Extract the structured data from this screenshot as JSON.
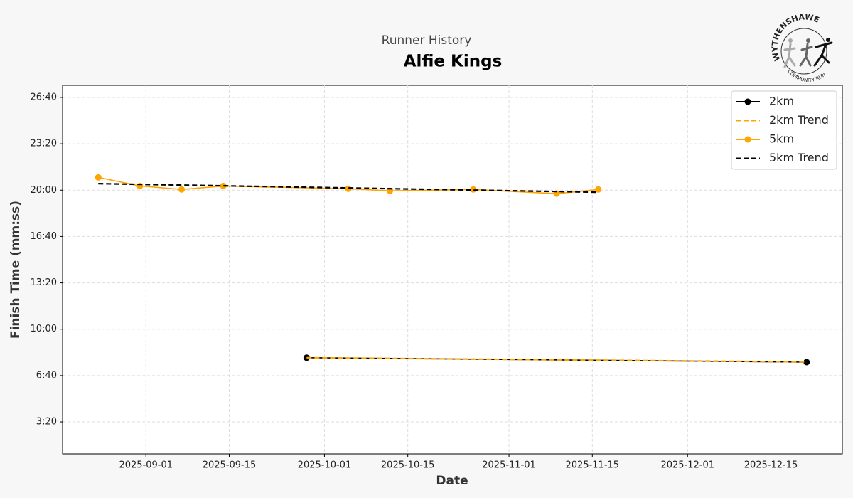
{
  "chart_data": {
    "type": "line",
    "subtitle": "Runner History",
    "title": "Alfie Kings",
    "logo_top": "WYTHENSHAWE",
    "logo_bottom": "COMMUNITY RUN",
    "x_label": "Date",
    "y_label": "Finish Time (mm:ss)",
    "grid": true,
    "legend": "upper right",
    "xlim": [
      "2025-08-18",
      "2025-12-27"
    ],
    "xticks": [
      "2025-09-01",
      "2025-09-15",
      "2025-10-01",
      "2025-10-15",
      "2025-11-01",
      "2025-11-15",
      "2025-12-01",
      "2025-12-15"
    ],
    "ylim": [
      62,
      1652
    ],
    "yticks": [
      {
        "value": 200,
        "label": "3:20"
      },
      {
        "value": 400,
        "label": "6:40"
      },
      {
        "value": 600,
        "label": "10:00"
      },
      {
        "value": 800,
        "label": "13:20"
      },
      {
        "value": 1000,
        "label": "16:40"
      },
      {
        "value": 1200,
        "label": "20:00"
      },
      {
        "value": 1400,
        "label": "23:20"
      },
      {
        "value": 1600,
        "label": "26:40"
      }
    ],
    "series": [
      {
        "name": "2km",
        "color": "#000000",
        "dashed": false,
        "markers": true,
        "x": [
          "2025-09-28",
          "2025-12-21"
        ],
        "values": [
          477,
          458
        ]
      },
      {
        "name": "2km Trend",
        "color": "#ffa500",
        "dashed": true,
        "markers": false,
        "x": [
          "2025-09-28",
          "2025-12-21"
        ],
        "values": [
          477,
          459
        ]
      },
      {
        "name": "5km",
        "color": "#ffa500",
        "dashed": false,
        "markers": true,
        "x": [
          "2025-08-24",
          "2025-08-31",
          "2025-09-07",
          "2025-09-14",
          "2025-10-05",
          "2025-10-12",
          "2025-10-26",
          "2025-11-09",
          "2025-11-16"
        ],
        "values": [
          1255,
          1218,
          1203,
          1218,
          1206,
          1197,
          1203,
          1185,
          1203
        ]
      },
      {
        "name": "5km Trend",
        "color": "#000000",
        "dashed": true,
        "markers": false,
        "x": [
          "2025-08-24",
          "2025-11-16"
        ],
        "values": [
          1228,
          1191
        ]
      }
    ]
  }
}
